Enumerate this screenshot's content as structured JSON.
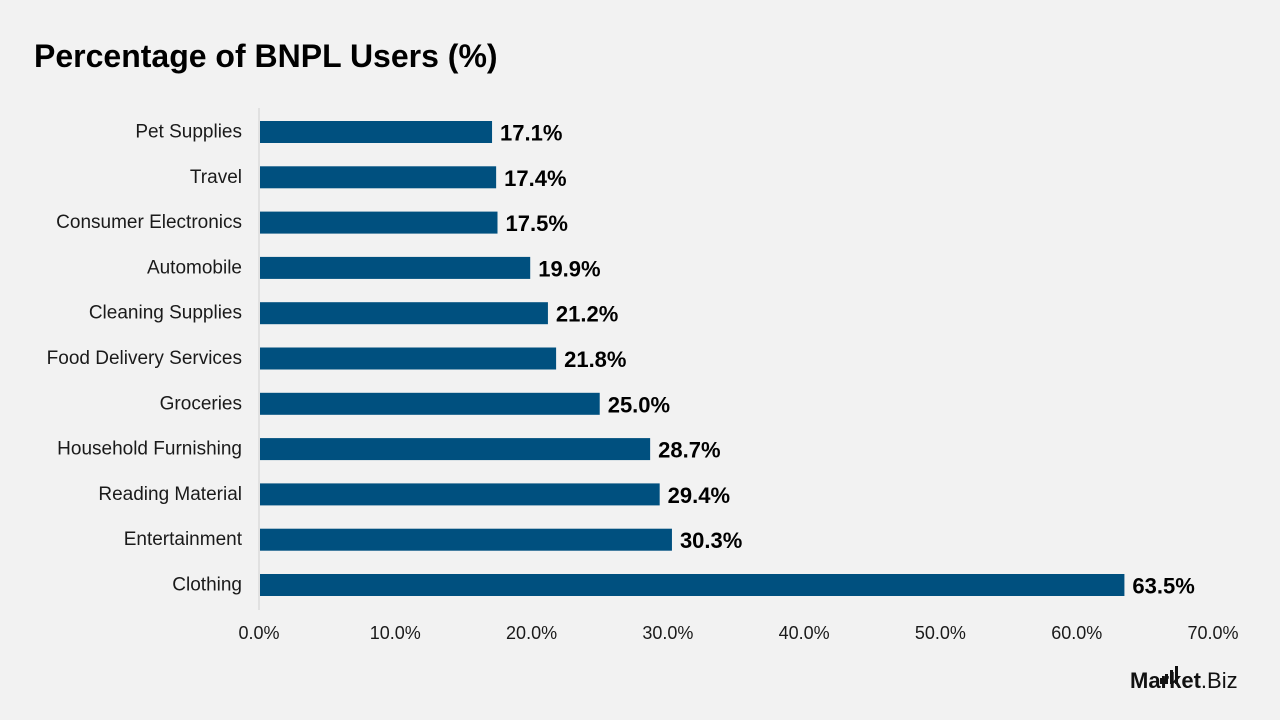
{
  "title": "Percentage of BNPL Users (%)",
  "brand": {
    "name_bold": "Market",
    "name_rest": ".Biz"
  },
  "colors": {
    "bar": "#00507f",
    "background": "#f2f2f2",
    "axis_line": "#d0d0d0"
  },
  "chart_data": {
    "type": "bar",
    "orientation": "horizontal",
    "title": "Percentage of BNPL Users (%)",
    "categories": [
      "Pet Supplies",
      "Travel",
      "Consumer Electronics",
      "Automobile",
      "Cleaning Supplies",
      "Food Delivery Services",
      "Groceries",
      "Household Furnishing",
      "Reading Material",
      "Entertainment",
      "Clothing"
    ],
    "values": [
      17.1,
      17.4,
      17.5,
      19.9,
      21.2,
      21.8,
      25.0,
      28.7,
      29.4,
      30.3,
      63.5
    ],
    "value_labels": [
      "17.1%",
      "17.4%",
      "17.5%",
      "19.9%",
      "21.2%",
      "21.8%",
      "25.0%",
      "28.7%",
      "29.4%",
      "30.3%",
      "63.5%"
    ],
    "xlim": [
      0,
      70
    ],
    "xticks": [
      0,
      10,
      20,
      30,
      40,
      50,
      60,
      70
    ],
    "xtick_labels": [
      "0.0%",
      "10.0%",
      "20.0%",
      "30.0%",
      "40.0%",
      "50.0%",
      "60.0%",
      "70.0%"
    ],
    "grid": false,
    "legend": "none"
  }
}
